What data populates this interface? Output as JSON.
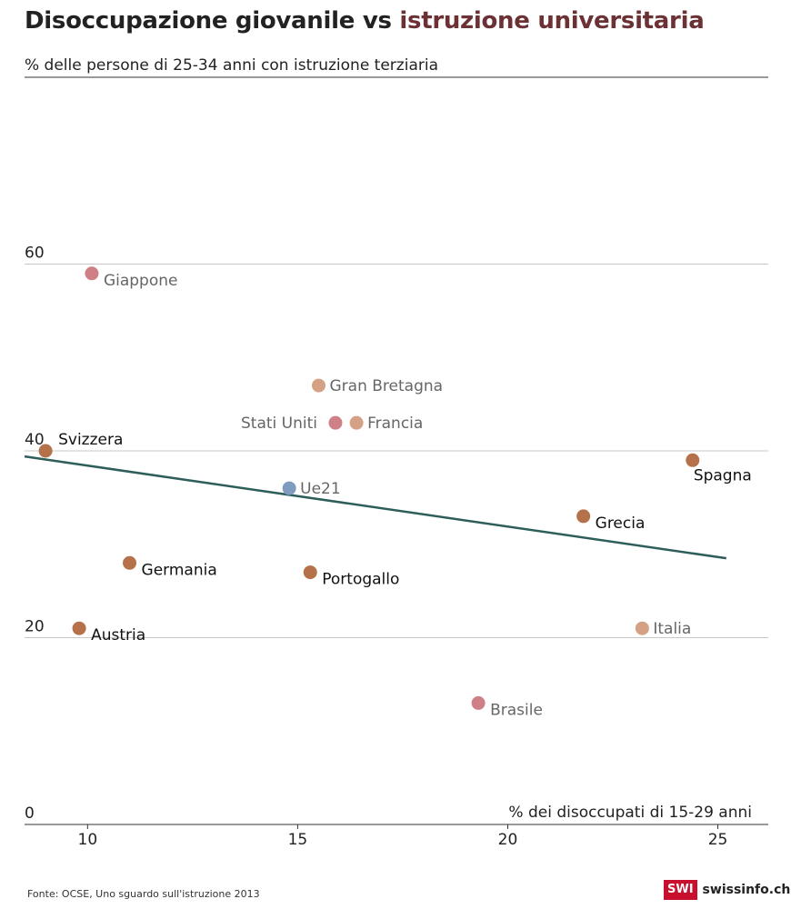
{
  "title": {
    "part1": "Disoccupazione giovanile vs ",
    "part2": "istruzione universitaria"
  },
  "subtitle": "% delle persone di 25-34 anni con istruzione terziaria",
  "footer": {
    "source": "Fonte: OCSE, Uno sguardo sull'istruzione 2013",
    "logo_badge": "SWI",
    "logo_text": "swissinfo.ch"
  },
  "colors": {
    "highlight": "#b5724a",
    "pink": "#cf8086",
    "tan": "#d4a184",
    "blue": "#7f9bbd",
    "trend": "#2e5e5a"
  },
  "chart_data": {
    "type": "scatter",
    "title": "Disoccupazione giovanile vs istruzione universitaria",
    "xlabel": "% dei disoccupati di 15-29 anni",
    "ylabel": "% delle persone di 25-34 anni con istruzione terziaria",
    "xlim": [
      8.5,
      26.2
    ],
    "ylim": [
      0,
      80
    ],
    "xticks": [
      10,
      15,
      20,
      25
    ],
    "yticks": [
      0,
      20,
      40,
      60
    ],
    "grid": "horizontal",
    "points": [
      {
        "name": "Giappone",
        "x": 10.1,
        "y": 59,
        "color": "pink",
        "label_side": "right-below",
        "label_color": "#666"
      },
      {
        "name": "Gran Bretagna",
        "x": 15.5,
        "y": 47,
        "color": "tan",
        "label_side": "right",
        "label_color": "#666"
      },
      {
        "name": "Stati Uniti",
        "x": 15.9,
        "y": 43,
        "color": "pink",
        "label_side": "left",
        "label_color": "#666"
      },
      {
        "name": "Francia",
        "x": 16.4,
        "y": 43,
        "color": "tan",
        "label_side": "right",
        "label_color": "#666"
      },
      {
        "name": "Svizzera",
        "x": 9.0,
        "y": 40,
        "color": "highlight",
        "label_side": "right-above",
        "label_color": "#111"
      },
      {
        "name": "Spagna",
        "x": 24.4,
        "y": 39,
        "color": "highlight",
        "label_side": "below",
        "label_color": "#111"
      },
      {
        "name": "Ue21",
        "x": 14.8,
        "y": 36,
        "color": "blue",
        "label_side": "right",
        "label_color": "#666"
      },
      {
        "name": "Grecia",
        "x": 21.8,
        "y": 33,
        "color": "highlight",
        "label_side": "right-below",
        "label_color": "#111"
      },
      {
        "name": "Germania",
        "x": 11.0,
        "y": 28,
        "color": "highlight",
        "label_side": "right-below",
        "label_color": "#111"
      },
      {
        "name": "Portogallo",
        "x": 15.3,
        "y": 27,
        "color": "highlight",
        "label_side": "right-below",
        "label_color": "#111"
      },
      {
        "name": "Austria",
        "x": 9.8,
        "y": 21,
        "color": "highlight",
        "label_side": "right-below",
        "label_color": "#111"
      },
      {
        "name": "Italia",
        "x": 23.2,
        "y": 21,
        "color": "tan",
        "label_side": "right",
        "label_color": "#666"
      },
      {
        "name": "Brasile",
        "x": 19.3,
        "y": 13,
        "color": "pink",
        "label_side": "right-below",
        "label_color": "#666"
      }
    ],
    "trendline": {
      "x": [
        8.5,
        25.2
      ],
      "y": [
        39.4,
        28.5
      ]
    }
  }
}
